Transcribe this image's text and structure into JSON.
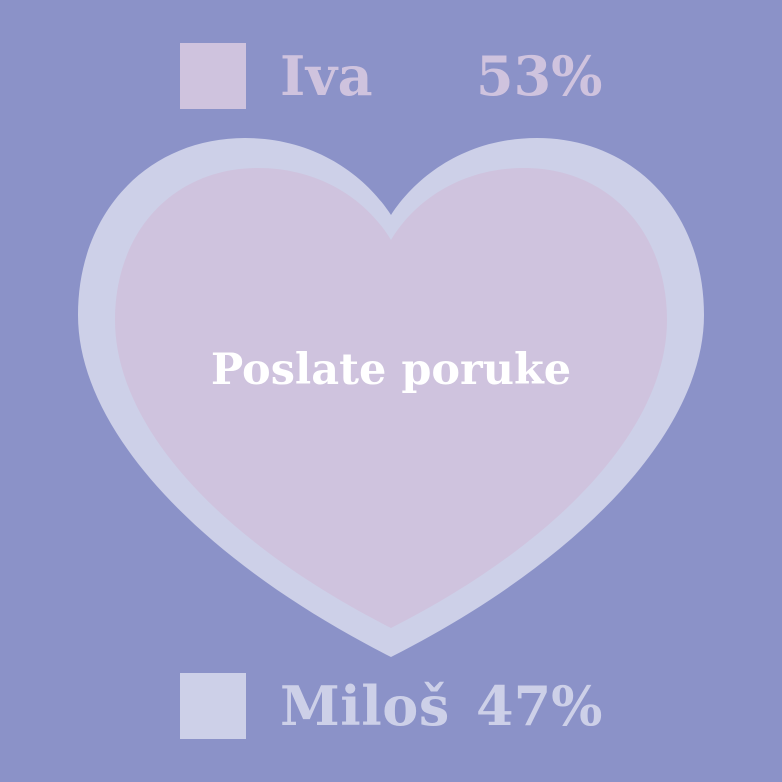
{
  "chart_data": {
    "type": "pie",
    "title": "",
    "center_label": "Poslate poruke",
    "series": [
      {
        "name": "Iva",
        "value": 53,
        "label": "53%",
        "color": "#cfc3de",
        "text_color": "#cfc3de"
      },
      {
        "name": "Miloš",
        "value": 47,
        "label": "47%",
        "color": "#cdd0e8",
        "text_color": "#cdd0e8"
      }
    ],
    "background_color": "#8b92c8"
  }
}
